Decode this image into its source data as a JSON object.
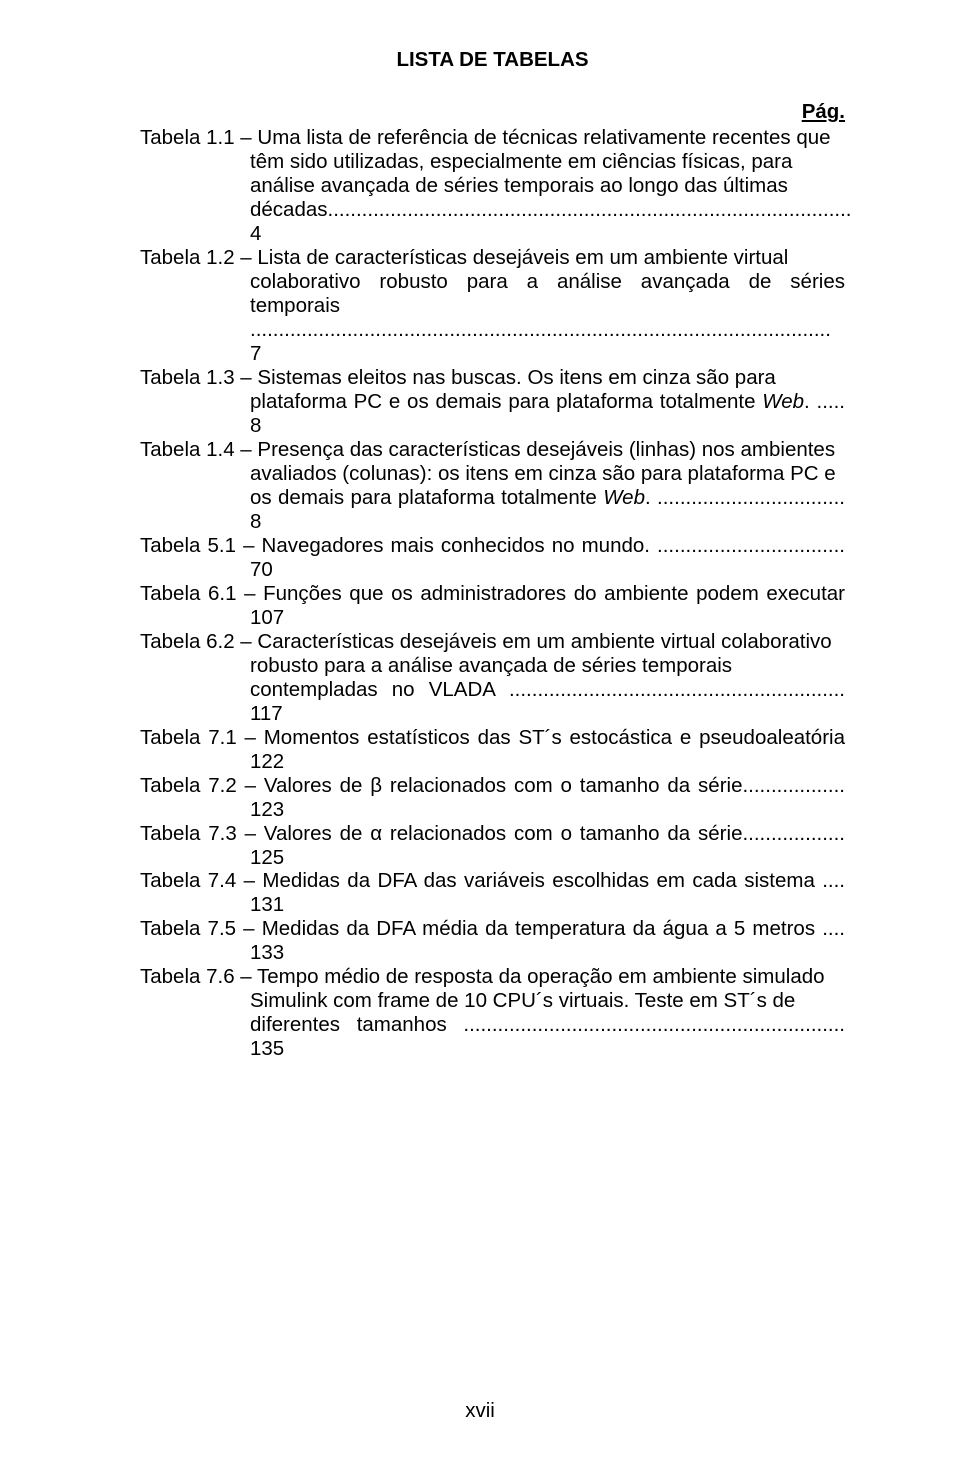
{
  "title": "LISTA DE TABELAS",
  "pag_label": "Pág.",
  "footer": "xvii",
  "entries": [
    {
      "label": "Tabela 1.1 – ",
      "line1": "Uma lista de referência de técnicas relativamente recentes que",
      "cont": [
        "têm sido utilizadas, especialmente em ciências físicas, para",
        "análise avançada de séries temporais ao longo das últimas",
        "décadas............................................................................................ 4"
      ]
    },
    {
      "label": "Tabela 1.2 – ",
      "line1": "Lista de características desejáveis em um ambiente virtual",
      "cont": [
        "colaborativo robusto para a análise avançada de séries temporais",
        "...................................................................................................... 7"
      ]
    },
    {
      "label": "Tabela 1.3 – ",
      "line1": "Sistemas eleitos nas buscas. Os itens em cinza são para",
      "cont_html": [
        "plataforma PC e os demais para plataforma totalmente <span class=\"italic\">Web</span>. ..... 8"
      ]
    },
    {
      "label": "Tabela 1.4 – ",
      "line1": "Presença das características desejáveis (linhas) nos ambientes",
      "cont_html": [
        "avaliados (colunas): os itens em cinza são para plataforma PC e",
        "os demais para plataforma totalmente <span class=\"italic\">Web</span>. ................................. 8"
      ]
    },
    {
      "label": "Tabela 5.1 – ",
      "line1": "Navegadores mais conhecidos no mundo. ................................. 70"
    },
    {
      "label": "Tabela 6.1 – ",
      "line1": "Funções que os administradores do ambiente podem executar 107"
    },
    {
      "label": "Tabela 6.2 – ",
      "line1": "Características desejáveis em um ambiente virtual colaborativo",
      "cont": [
        "robusto para a análise avançada de séries temporais",
        "contempladas no VLADA ........................................................... 117"
      ]
    },
    {
      "label": "Tabela 7.1 – ",
      "line1": "Momentos estatísticos das ST´s estocástica e pseudoaleatória 122"
    },
    {
      "label": "Tabela 7.2 – ",
      "line1": "Valores de β relacionados com o tamanho da série.................. 123"
    },
    {
      "label": "Tabela 7.3 – ",
      "line1": "Valores de α relacionados com o tamanho da série.................. 125"
    },
    {
      "label": "Tabela 7.4 – ",
      "line1": "Medidas da DFA das variáveis escolhidas em cada sistema .... 131"
    },
    {
      "label": "Tabela 7.5 – ",
      "line1": "Medidas da DFA média da temperatura da água a 5 metros .... 133"
    },
    {
      "label": "Tabela 7.6 – ",
      "line1": "Tempo médio de resposta da operação em ambiente simulado",
      "cont": [
        "Simulink com frame de 10 CPU´s virtuais. Teste em ST´s de",
        "diferentes tamanhos ................................................................... 135"
      ]
    }
  ]
}
